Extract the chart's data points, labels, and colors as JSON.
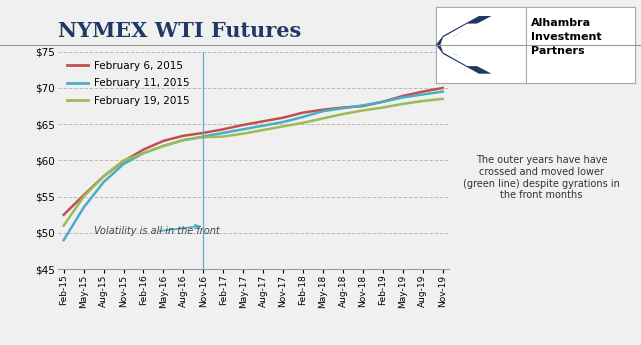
{
  "title": "NYMEX WTI Futures",
  "title_color": "#1F3864",
  "background_color": "#F0F0F0",
  "plot_bg_color": "#F0F0F0",
  "ylim": [
    45,
    75
  ],
  "yticks": [
    45,
    50,
    55,
    60,
    65,
    70,
    75
  ],
  "grid_color": "#BBBBBB",
  "line1_label": "February 6, 2015",
  "line1_color": "#C0504D",
  "line2_label": "February 11, 2015",
  "line2_color": "#4BACC6",
  "line3_label": "February 19, 2015",
  "line3_color": "#9BBB59",
  "annotation1_text": "Volatility is all in the front",
  "annotation2_text": "The outer years have have\ncrossed and moved lower\n(green line) despite gyrations in\nthe front months",
  "tick_labels": [
    "Feb-15",
    "May-15",
    "Aug-15",
    "Nov-15",
    "Feb-16",
    "May-16",
    "Aug-16",
    "Nov-16",
    "Feb-17",
    "May-17",
    "Aug-17",
    "Nov-17",
    "Feb-18",
    "May-18",
    "Aug-18",
    "Nov-18",
    "Feb-19",
    "May-19",
    "Aug-19",
    "Nov-19"
  ],
  "line1_values": [
    52.5,
    55.2,
    57.8,
    59.9,
    61.5,
    62.7,
    63.4,
    63.8,
    64.3,
    64.9,
    65.4,
    65.9,
    66.6,
    67.0,
    67.3,
    67.5,
    68.1,
    68.9,
    69.5,
    70.0
  ],
  "line2_values": [
    49.0,
    53.5,
    57.0,
    59.5,
    61.0,
    62.0,
    62.8,
    63.3,
    63.8,
    64.3,
    64.8,
    65.3,
    66.0,
    66.8,
    67.2,
    67.6,
    68.1,
    68.7,
    69.1,
    69.5
  ],
  "line3_values": [
    51.0,
    55.0,
    57.8,
    60.0,
    61.0,
    62.0,
    62.8,
    63.2,
    63.3,
    63.7,
    64.2,
    64.7,
    65.2,
    65.8,
    66.4,
    66.9,
    67.3,
    67.8,
    68.2,
    68.5
  ]
}
